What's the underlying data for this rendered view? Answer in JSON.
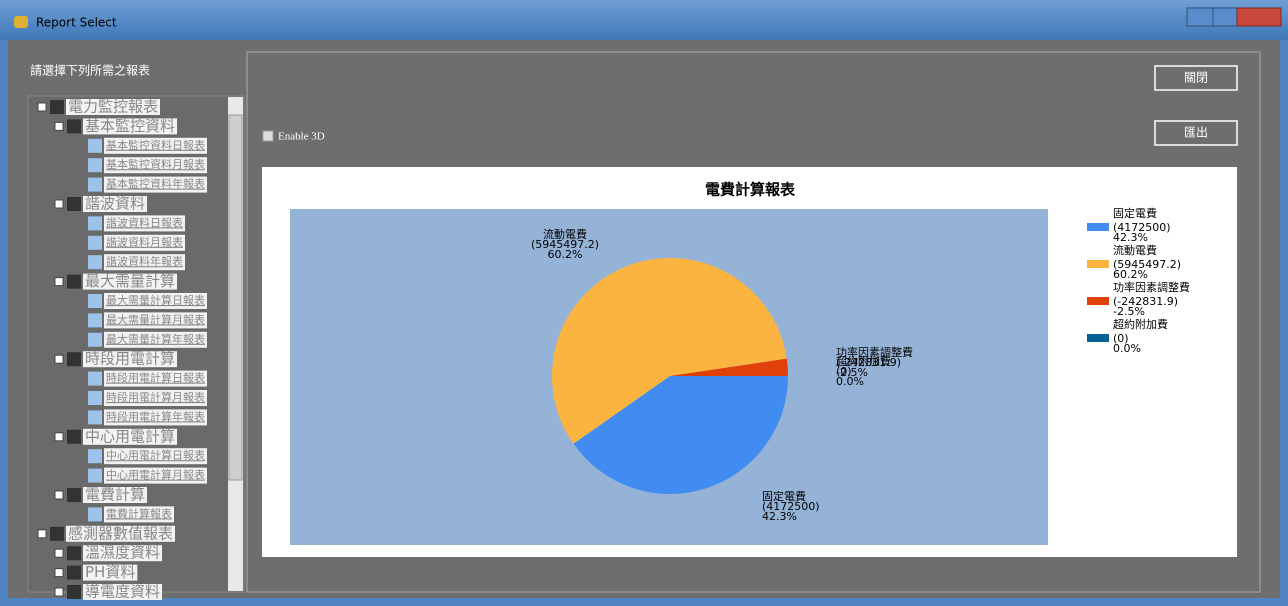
{
  "window": {
    "title": "Report Select"
  },
  "prompt": "請選擇下列所需之報表",
  "tree": [
    {
      "label": "電力監控報表",
      "children": [
        {
          "label": "基本監控資料",
          "children": [
            {
              "label": "基本監控資料日報表"
            },
            {
              "label": "基本監控資料月報表"
            },
            {
              "label": "基本監控資料年報表"
            }
          ]
        },
        {
          "label": "諧波資料",
          "children": [
            {
              "label": "諧波資料日報表"
            },
            {
              "label": "諧波資料月報表"
            },
            {
              "label": "諧波資料年報表"
            }
          ]
        },
        {
          "label": "最大需量計算",
          "children": [
            {
              "label": "最大需量計算日報表"
            },
            {
              "label": "最大需量計算月報表"
            },
            {
              "label": "最大需量計算年報表"
            }
          ]
        },
        {
          "label": "時段用電計算",
          "children": [
            {
              "label": "時段用電計算日報表"
            },
            {
              "label": "時段用電計算月報表"
            },
            {
              "label": "時段用電計算年報表"
            }
          ]
        },
        {
          "label": "中心用電計算",
          "children": [
            {
              "label": "中心用電計算日報表"
            },
            {
              "label": "中心用電計算月報表"
            }
          ]
        },
        {
          "label": "電費計算",
          "children": [
            {
              "label": "電費計算報表"
            }
          ]
        }
      ]
    },
    {
      "label": "感測器數值報表",
      "children": [
        {
          "label": "溫濕度資料"
        },
        {
          "label": "PH資料"
        },
        {
          "label": "導電度資料"
        }
      ]
    }
  ],
  "buttons": {
    "close": "關閉",
    "export": "匯出"
  },
  "checkbox": "Enable 3D",
  "chart_data": {
    "type": "pie",
    "title": "電費計算報表",
    "categories": [
      "固定電費",
      "流動電費",
      "功率因素調整費",
      "超約附加費"
    ],
    "values": [
      4172500,
      5945497.2,
      -242831.9,
      0
    ],
    "value_labels": [
      "(4172500)",
      "(5945497.2)",
      "(-242831.9)",
      "(0)"
    ],
    "percent_labels": [
      "42.3%",
      "60.2%",
      "-2.5%",
      "0.0%"
    ],
    "colors": [
      "#418cf0",
      "#fcb441",
      "#e0400a",
      "#056492"
    ],
    "legend": "right"
  }
}
